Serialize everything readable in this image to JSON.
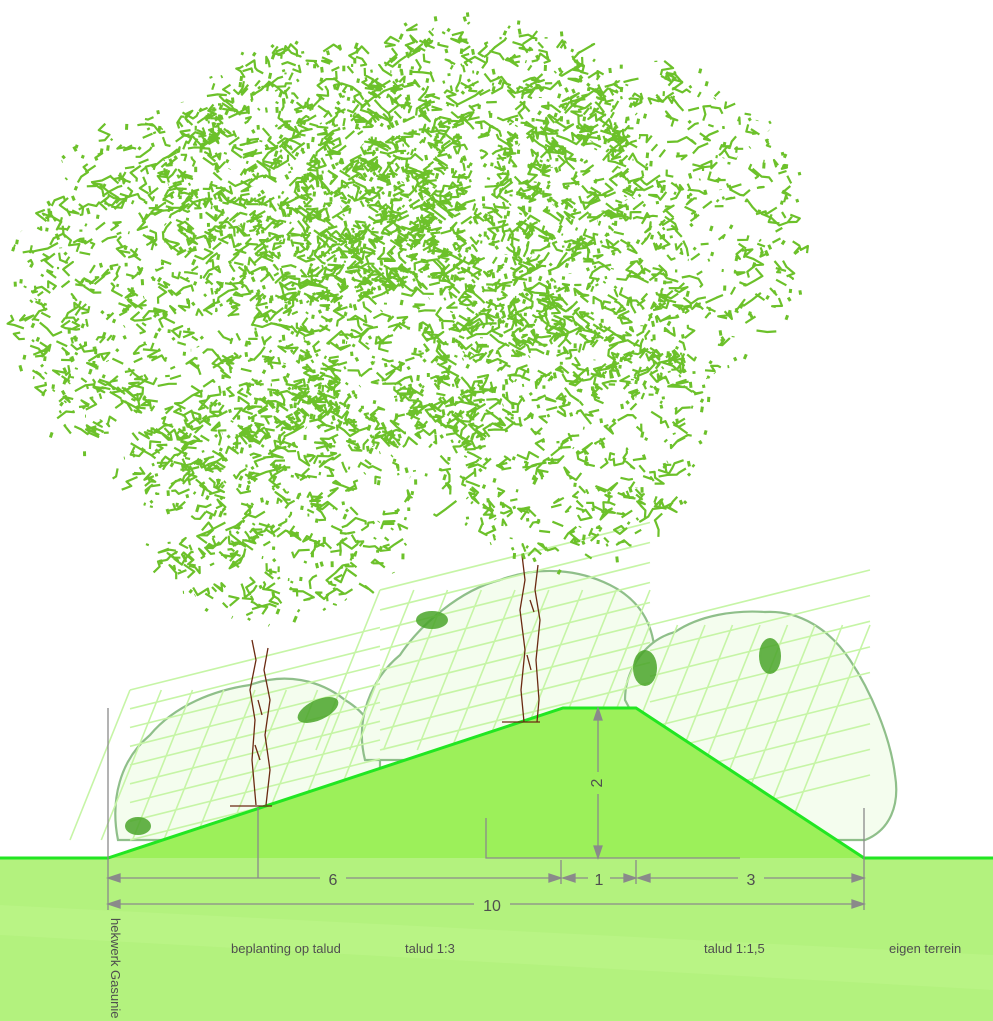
{
  "colors": {
    "ground": "#b3f27e",
    "embankment": "#9cf05a",
    "embankment_edge": "#22e622",
    "foliage": "#6cc12a",
    "shrub_outline": "#8fbf8a",
    "shrub_hatch": "#c6f5a6",
    "shrub_spot": "#4aa52a",
    "trunk": "#6b2a12",
    "dimension_line": "#8a8a8a",
    "label_text": "#4f4f4f"
  },
  "dimensions": {
    "left_slope_width": "6",
    "crest_width": "1",
    "right_slope_width": "3",
    "total_width": "10",
    "height": "2"
  },
  "labels": {
    "fence": "hekwerk Gasunie",
    "planting": "beplanting op talud",
    "slope_left": "talud 1:3",
    "slope_right": "talud 1:1,5",
    "own_property": "eigen terrein"
  }
}
